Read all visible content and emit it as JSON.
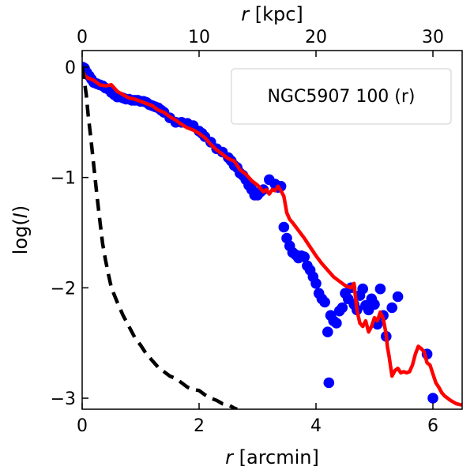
{
  "chart_data": {
    "type": "scatter",
    "xlabel": "r [arcmin]",
    "xlabel_var": "r",
    "xlabel_unit": " [arcmin]",
    "x2label": "r [kpc]",
    "x2label_var": "r",
    "x2label_unit": " [kpc]",
    "ylabel": "log(I)",
    "ylabel_pre": "log(",
    "ylabel_var": "I",
    "ylabel_post": ")",
    "xlim": [
      0,
      6.5
    ],
    "ylim": [
      -3.1,
      0.15
    ],
    "x2lim": [
      0,
      32.5
    ],
    "x_ticks": [
      0,
      2,
      4,
      6
    ],
    "x_tick_labels": [
      "0",
      "2",
      "4",
      "6"
    ],
    "x2_ticks": [
      0,
      10,
      20,
      30
    ],
    "x2_tick_labels": [
      "0",
      "10",
      "20",
      "30"
    ],
    "y_ticks": [
      0,
      -1,
      -2,
      -3
    ],
    "y_tick_labels": [
      "0",
      "−1",
      "−2",
      "−3"
    ],
    "grid": false,
    "legend": {
      "text": "NGC5907 100 (r)",
      "position": "top-right"
    },
    "colors": {
      "points": "#0000ff",
      "model": "#ff0000",
      "psf": "#000000"
    },
    "series": [
      {
        "kind": "scatter",
        "color": "#0000ff",
        "x": [
          0.01,
          0.04,
          0.08,
          0.12,
          0.16,
          0.2,
          0.25,
          0.3,
          0.35,
          0.4,
          0.45,
          0.5,
          0.55,
          0.6,
          0.65,
          0.7,
          0.75,
          0.8,
          0.85,
          0.9,
          0.95,
          1.0,
          1.05,
          1.1,
          1.15,
          1.2,
          1.25,
          1.3,
          1.35,
          1.4,
          1.5,
          1.6,
          1.7,
          1.8,
          1.9,
          2.0,
          2.05,
          2.1,
          2.2,
          2.3,
          2.4,
          2.5,
          2.55,
          2.6,
          2.65,
          2.7,
          2.75,
          2.8,
          2.85,
          2.9,
          2.95,
          3.0,
          3.05,
          3.1,
          3.2,
          3.3,
          3.35,
          3.4,
          3.45,
          3.5,
          3.55,
          3.6,
          3.65,
          3.7,
          3.75,
          3.8,
          3.85,
          3.9,
          3.95,
          4.0,
          4.05,
          4.1,
          4.15,
          4.2,
          4.25,
          4.3,
          4.35,
          4.4,
          4.45,
          4.5,
          4.55,
          4.6,
          4.65,
          4.7,
          4.75,
          4.8,
          4.85,
          4.9,
          4.95,
          5.0,
          5.05,
          5.1,
          5.15,
          5.2,
          5.3,
          5.4,
          5.9,
          6.0
        ],
        "y": [
          0.0,
          -0.01,
          -0.05,
          -0.08,
          -0.11,
          -0.14,
          -0.15,
          -0.16,
          -0.17,
          -0.19,
          -0.2,
          -0.23,
          -0.25,
          -0.27,
          -0.27,
          -0.28,
          -0.29,
          -0.29,
          -0.3,
          -0.3,
          -0.3,
          -0.31,
          -0.31,
          -0.32,
          -0.34,
          -0.35,
          -0.36,
          -0.37,
          -0.39,
          -0.41,
          -0.46,
          -0.5,
          -0.5,
          -0.51,
          -0.53,
          -0.58,
          -0.6,
          -0.63,
          -0.68,
          -0.74,
          -0.77,
          -0.82,
          -0.85,
          -0.89,
          -0.91,
          -0.96,
          -0.98,
          -1.02,
          -1.07,
          -1.11,
          -1.16,
          -1.16,
          -1.13,
          -1.11,
          -1.02,
          -1.06,
          -1.09,
          -1.08,
          -1.45,
          -1.55,
          -1.62,
          -1.68,
          -1.7,
          -1.73,
          -1.71,
          -1.72,
          -1.8,
          -1.84,
          -1.9,
          -1.96,
          -2.05,
          -2.1,
          -2.13,
          -2.4,
          -2.25,
          -2.3,
          -2.32,
          -2.21,
          -2.18,
          -2.05,
          -2.1,
          -2.0,
          -2.15,
          -2.2,
          -2.07,
          -2.01,
          -2.16,
          -2.2,
          -2.1,
          -2.15,
          -2.33,
          -2.01,
          -2.25,
          -2.44,
          -2.18,
          -2.08,
          -2.6,
          -3.0
        ]
      },
      {
        "kind": "scatter",
        "color": "#0000ff",
        "x": [
          4.22
        ],
        "y": [
          -2.86
        ]
      },
      {
        "kind": "line",
        "color": "#ff0000",
        "x": [
          0.0,
          0.05,
          0.1,
          0.2,
          0.3,
          0.4,
          0.5,
          0.6,
          0.7,
          0.8,
          0.9,
          1.0,
          1.1,
          1.2,
          1.3,
          1.4,
          1.5,
          1.6,
          1.7,
          1.8,
          1.9,
          2.0,
          2.1,
          2.2,
          2.3,
          2.4,
          2.5,
          2.6,
          2.7,
          2.8,
          2.9,
          3.0,
          3.05,
          3.1,
          3.15,
          3.2,
          3.25,
          3.3,
          3.35,
          3.4,
          3.45,
          3.5,
          3.55,
          3.6,
          3.7,
          3.8,
          3.9,
          4.0,
          4.1,
          4.2,
          4.3,
          4.4,
          4.5,
          4.6,
          4.65,
          4.7,
          4.75,
          4.8,
          4.85,
          4.9,
          4.95,
          5.0,
          5.05,
          5.1,
          5.15,
          5.2,
          5.22,
          5.25,
          5.3,
          5.35,
          5.4,
          5.45,
          5.5,
          5.55,
          5.6,
          5.65,
          5.7,
          5.75,
          5.8,
          5.85,
          5.9,
          5.95,
          6.0,
          6.05,
          6.1,
          6.15,
          6.2,
          6.3,
          6.4,
          6.48
        ],
        "y": [
          -0.03,
          -0.08,
          -0.1,
          -0.12,
          -0.16,
          -0.17,
          -0.16,
          -0.22,
          -0.25,
          -0.28,
          -0.29,
          -0.31,
          -0.33,
          -0.35,
          -0.39,
          -0.41,
          -0.45,
          -0.48,
          -0.52,
          -0.55,
          -0.57,
          -0.6,
          -0.64,
          -0.7,
          -0.75,
          -0.79,
          -0.83,
          -0.85,
          -0.93,
          -0.97,
          -1.03,
          -1.07,
          -1.1,
          -1.13,
          -1.11,
          -1.15,
          -1.11,
          -1.12,
          -1.08,
          -1.12,
          -1.17,
          -1.32,
          -1.38,
          -1.41,
          -1.48,
          -1.55,
          -1.63,
          -1.71,
          -1.78,
          -1.84,
          -1.9,
          -1.94,
          -1.98,
          -2.0,
          -1.96,
          -2.2,
          -2.32,
          -2.35,
          -2.3,
          -2.4,
          -2.35,
          -2.27,
          -2.3,
          -2.22,
          -2.28,
          -2.42,
          -2.53,
          -2.62,
          -2.8,
          -2.75,
          -2.73,
          -2.77,
          -2.76,
          -2.77,
          -2.76,
          -2.7,
          -2.6,
          -2.53,
          -2.55,
          -2.58,
          -2.68,
          -2.7,
          -2.78,
          -2.86,
          -2.9,
          -2.95,
          -2.98,
          -3.02,
          -3.05,
          -3.06
        ]
      },
      {
        "kind": "dashed-line",
        "color": "#000000",
        "x": [
          0.0,
          0.03,
          0.07,
          0.1,
          0.15,
          0.2,
          0.25,
          0.3,
          0.35,
          0.4,
          0.45,
          0.5,
          0.6,
          0.7,
          0.8,
          0.9,
          1.0,
          1.1,
          1.2,
          1.3,
          1.4,
          1.5,
          1.6,
          1.7,
          1.8,
          1.9,
          2.0,
          2.1,
          2.2,
          2.3,
          2.4,
          2.5,
          2.6,
          2.65
        ],
        "y": [
          0.0,
          -0.1,
          -0.25,
          -0.42,
          -0.65,
          -0.9,
          -1.15,
          -1.38,
          -1.6,
          -1.75,
          -1.88,
          -2.0,
          -2.13,
          -2.25,
          -2.35,
          -2.45,
          -2.52,
          -2.6,
          -2.66,
          -2.72,
          -2.76,
          -2.8,
          -2.82,
          -2.86,
          -2.9,
          -2.92,
          -2.93,
          -2.97,
          -3.0,
          -3.02,
          -3.05,
          -3.06,
          -3.09,
          -3.1
        ]
      }
    ]
  }
}
